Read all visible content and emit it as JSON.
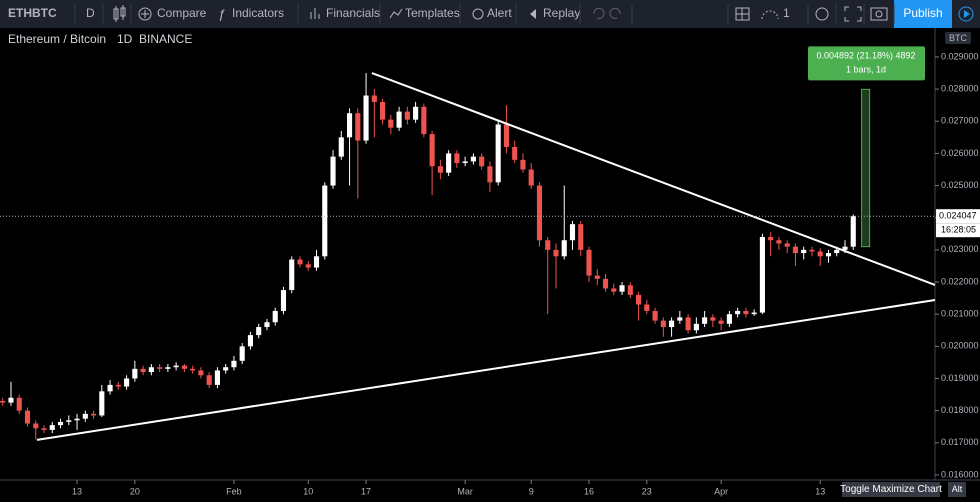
{
  "toolbar": {
    "symbol": "ETHBTC",
    "interval": "D",
    "items": [
      "Compare",
      "Indicators",
      "Financials",
      "Templates",
      "Alert",
      "Replay"
    ],
    "layout_count": "1",
    "publish": "Publish"
  },
  "chart_data": {
    "type": "candlestick",
    "title": "Ethereum / Bitcoin",
    "interval": "1D",
    "exchange": "BINANCE",
    "currency": "BTC",
    "up_color": "#ffffff",
    "down_color": "#ef5350",
    "open": [
      0.0183,
      0.01825,
      0.0184,
      0.018,
      0.0176,
      0.01745,
      0.0174,
      0.01755,
      0.01765,
      0.0177,
      0.01775,
      0.0179,
      0.01785,
      0.0186,
      0.0188,
      0.01875,
      0.019,
      0.0193,
      0.0192,
      0.01935,
      0.0193,
      0.01935,
      0.0194,
      0.0193,
      0.01925,
      0.0191,
      0.0188,
      0.01925,
      0.01935,
      0.01955,
      0.02,
      0.02035,
      0.0206,
      0.02075,
      0.0211,
      0.02175,
      0.0227,
      0.02255,
      0.02245,
      0.0228,
      0.025,
      0.0259,
      0.0265,
      0.02725,
      0.0264,
      0.0278,
      0.0276,
      0.02705,
      0.0268,
      0.0273,
      0.02705,
      0.02745,
      0.0266,
      0.0256,
      0.0254,
      0.026,
      0.0257,
      0.02575,
      0.0259,
      0.0256,
      0.0251,
      0.0269,
      0.0262,
      0.0258,
      0.0255,
      0.025,
      0.0233,
      0.023,
      0.0228,
      0.0233,
      0.0238,
      0.023,
      0.0222,
      0.0221,
      0.0218,
      0.0217,
      0.0219,
      0.0216,
      0.0213,
      0.0211,
      0.0208,
      0.0206,
      0.0208,
      0.0209,
      0.0205,
      0.0207,
      0.0209,
      0.0208,
      0.0207,
      0.021,
      0.0211,
      0.021,
      0.02105,
      0.0234,
      0.0233,
      0.0232,
      0.0231,
      0.0229,
      0.023,
      0.02295,
      0.0228,
      0.0229,
      0.023,
      0.0231
    ],
    "high": [
      0.0184,
      0.0189,
      0.0185,
      0.0181,
      0.0177,
      0.01755,
      0.01765,
      0.01775,
      0.01785,
      0.0179,
      0.018,
      0.018,
      0.0188,
      0.01895,
      0.0189,
      0.0191,
      0.01955,
      0.0194,
      0.01945,
      0.01945,
      0.01945,
      0.0195,
      0.01945,
      0.0194,
      0.01935,
      0.0192,
      0.01935,
      0.01945,
      0.0197,
      0.0201,
      0.02045,
      0.0207,
      0.02085,
      0.0212,
      0.02185,
      0.0228,
      0.0228,
      0.02265,
      0.023,
      0.0251,
      0.0261,
      0.0267,
      0.0274,
      0.0274,
      0.0285,
      0.028,
      0.0277,
      0.0272,
      0.02745,
      0.02745,
      0.0276,
      0.02755,
      0.0267,
      0.0258,
      0.0261,
      0.0261,
      0.0259,
      0.026,
      0.026,
      0.02575,
      0.027,
      0.0275,
      0.0264,
      0.026,
      0.0257,
      0.0251,
      0.0234,
      0.0232,
      0.025,
      0.0239,
      0.0239,
      0.0231,
      0.0224,
      0.02225,
      0.02195,
      0.022,
      0.022,
      0.0217,
      0.02145,
      0.0212,
      0.0209,
      0.0209,
      0.0211,
      0.021,
      0.0209,
      0.0211,
      0.021,
      0.0209,
      0.0211,
      0.0212,
      0.0212,
      0.02115,
      0.0235,
      0.02355,
      0.0234,
      0.0233,
      0.0232,
      0.0231,
      0.0231,
      0.02305,
      0.023,
      0.0231,
      0.0233,
      0.0241
    ],
    "low": [
      0.01815,
      0.01815,
      0.0179,
      0.0175,
      0.0171,
      0.0173,
      0.0173,
      0.01745,
      0.01755,
      0.0174,
      0.01765,
      0.01775,
      0.0178,
      0.0185,
      0.01865,
      0.01865,
      0.0189,
      0.0191,
      0.0191,
      0.0192,
      0.0192,
      0.01925,
      0.0192,
      0.01915,
      0.019,
      0.0187,
      0.0187,
      0.01915,
      0.01925,
      0.01945,
      0.0199,
      0.02025,
      0.0205,
      0.02065,
      0.021,
      0.02165,
      0.02245,
      0.02235,
      0.02235,
      0.0227,
      0.0249,
      0.0258,
      0.025,
      0.0246,
      0.0263,
      0.0265,
      0.0269,
      0.0266,
      0.0267,
      0.0269,
      0.02695,
      0.0265,
      0.0247,
      0.0252,
      0.0253,
      0.02555,
      0.0256,
      0.02565,
      0.0255,
      0.0248,
      0.025,
      0.026,
      0.0257,
      0.0254,
      0.0249,
      0.0231,
      0.021,
      0.0218,
      0.0227,
      0.023,
      0.0228,
      0.022,
      0.0219,
      0.0217,
      0.0216,
      0.0216,
      0.0215,
      0.0208,
      0.021,
      0.0207,
      0.0203,
      0.0203,
      0.0207,
      0.0204,
      0.0204,
      0.0206,
      0.0206,
      0.0205,
      0.0206,
      0.0209,
      0.0209,
      0.02095,
      0.021,
      0.0228,
      0.023,
      0.0229,
      0.0225,
      0.0227,
      0.0228,
      0.0225,
      0.0226,
      0.0228,
      0.0229,
      0.023
    ],
    "close": [
      0.01825,
      0.0184,
      0.018,
      0.0176,
      0.01745,
      0.0174,
      0.01755,
      0.01765,
      0.0177,
      0.01775,
      0.0179,
      0.01785,
      0.0186,
      0.0188,
      0.01875,
      0.019,
      0.0193,
      0.0192,
      0.01935,
      0.0193,
      0.01935,
      0.0194,
      0.0193,
      0.01925,
      0.0191,
      0.0188,
      0.01925,
      0.01935,
      0.01955,
      0.02,
      0.02035,
      0.0206,
      0.02075,
      0.0211,
      0.02175,
      0.0227,
      0.02255,
      0.02245,
      0.0228,
      0.025,
      0.0259,
      0.0265,
      0.02725,
      0.0264,
      0.0278,
      0.0276,
      0.02705,
      0.0268,
      0.0273,
      0.02705,
      0.02745,
      0.0266,
      0.0256,
      0.0254,
      0.026,
      0.0257,
      0.02575,
      0.0259,
      0.0256,
      0.0251,
      0.0269,
      0.0262,
      0.0258,
      0.0255,
      0.025,
      0.0233,
      0.023,
      0.0228,
      0.0233,
      0.0238,
      0.023,
      0.0222,
      0.0221,
      0.0218,
      0.0217,
      0.0219,
      0.0216,
      0.0213,
      0.0211,
      0.0208,
      0.0206,
      0.0208,
      0.0209,
      0.0205,
      0.0207,
      0.0209,
      0.0208,
      0.0207,
      0.021,
      0.0211,
      0.021,
      0.02105,
      0.0234,
      0.0233,
      0.0232,
      0.0231,
      0.0229,
      0.023,
      0.02295,
      0.0228,
      0.0229,
      0.023,
      0.0231,
      0.024047
    ],
    "xlim": [
      -0.33,
      112.9
    ],
    "xticks": [
      {
        "value": 9,
        "label": "13"
      },
      {
        "value": 16,
        "label": "20"
      },
      {
        "value": 28,
        "label": "Feb"
      },
      {
        "value": 37,
        "label": "10"
      },
      {
        "value": 44,
        "label": "17"
      },
      {
        "value": 56,
        "label": "Mar"
      },
      {
        "value": 64,
        "label": "9"
      },
      {
        "value": 71,
        "label": "16"
      },
      {
        "value": 78,
        "label": "23"
      },
      {
        "value": 87,
        "label": "Apr"
      },
      {
        "value": 99,
        "label": "13"
      }
    ],
    "ylim": [
      0.015843,
      0.0299
    ],
    "yticks": [
      {
        "value": 0.029,
        "label": "0.029000"
      },
      {
        "value": 0.028,
        "label": "0.028000"
      },
      {
        "value": 0.027,
        "label": "0.027000"
      },
      {
        "value": 0.026,
        "label": "0.026000"
      },
      {
        "value": 0.025,
        "label": "0.025000"
      },
      {
        "value": 0.024,
        "label": "0.024000"
      },
      {
        "value": 0.023,
        "label": "0.023000"
      },
      {
        "value": 0.022,
        "label": "0.022000"
      },
      {
        "value": 0.021,
        "label": "0.021000"
      },
      {
        "value": 0.02,
        "label": "0.020000"
      },
      {
        "value": 0.019,
        "label": "0.019000"
      },
      {
        "value": 0.018,
        "label": "0.018000"
      },
      {
        "value": 0.017,
        "label": "0.017000"
      },
      {
        "value": 0.016,
        "label": "0.016000"
      }
    ],
    "last_price": {
      "value": 0.024047,
      "label": "0.024047"
    },
    "countdown": "16:28:05",
    "trendlines": [
      {
        "x": [
          44.7,
          112.9
        ],
        "y": [
          0.0285,
          0.02191
        ]
      },
      {
        "x": [
          4.15,
          112.9
        ],
        "y": [
          0.01709,
          0.02144
        ]
      }
    ],
    "measure": {
      "x": 104.5,
      "from": 0.0231,
      "to": 0.027992,
      "label": "0.004892 (21.18%) 4892",
      "sublabel": "1 bars, 1d"
    }
  },
  "footer": {
    "toggle": "Toggle Maximize Chart",
    "shortcut": "Alt"
  }
}
